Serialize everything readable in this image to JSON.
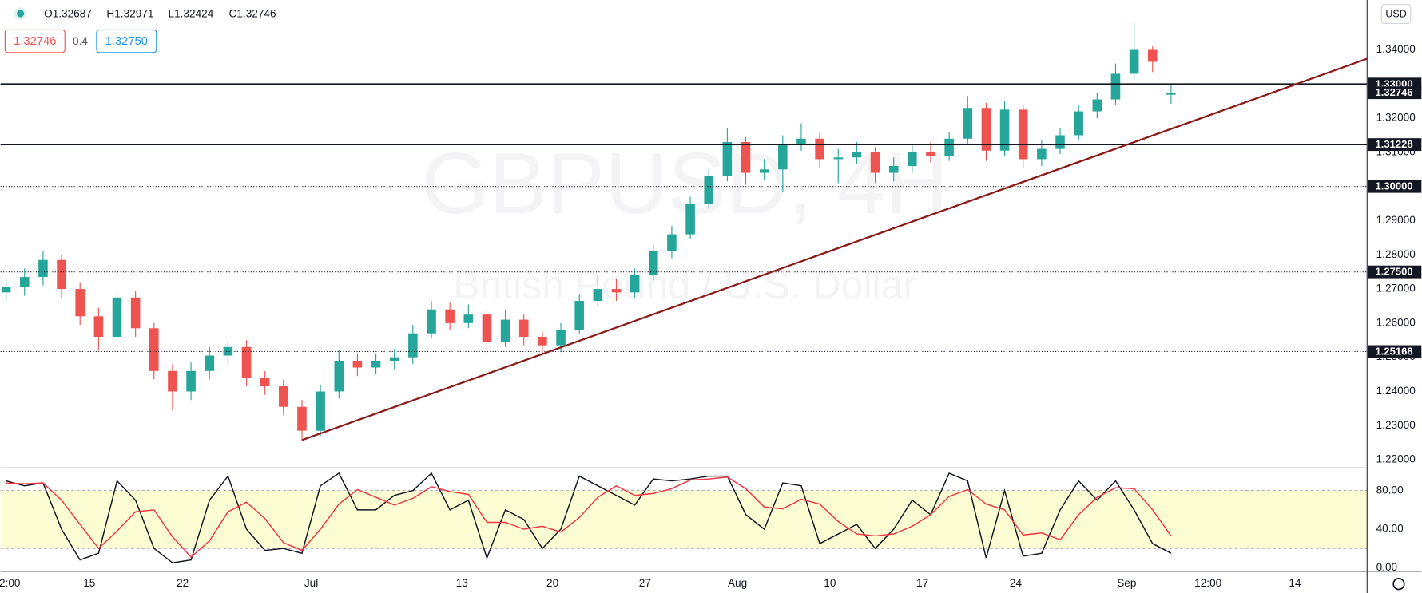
{
  "header": {
    "ohlc": [
      "O1.32687",
      "H1.32971",
      "L1.32424",
      "C1.32746"
    ],
    "bid": "1.32746",
    "spread": "0.4",
    "ask": "1.32750",
    "currency": "USD"
  },
  "chart_data": [
    {
      "type": "candlestick",
      "watermark": "GBPUSD, 4H",
      "watermark_subtitle": "British Pound / U.S. Dollar",
      "x": [
        0,
        1,
        2,
        3,
        4,
        5,
        6,
        7,
        8,
        9,
        10,
        11,
        12,
        13,
        14,
        15,
        16,
        17,
        18,
        19,
        20,
        21,
        22,
        23,
        24,
        25,
        26,
        27,
        28,
        29,
        30,
        31,
        32,
        33,
        34,
        35,
        36,
        37,
        38,
        39,
        40,
        41,
        42,
        43,
        44,
        45,
        46,
        47,
        48,
        49,
        50,
        51,
        52,
        53,
        54,
        55,
        56,
        57,
        58,
        59,
        60,
        61,
        62,
        63
      ],
      "open": [
        1.269,
        1.2705,
        1.2735,
        1.2785,
        1.27,
        1.262,
        1.256,
        1.2675,
        1.2585,
        1.246,
        1.24,
        1.246,
        1.2505,
        1.253,
        1.244,
        1.2415,
        1.2355,
        1.2285,
        1.24,
        1.249,
        1.247,
        1.249,
        1.25,
        1.257,
        1.264,
        1.26,
        1.2625,
        1.2545,
        1.261,
        1.256,
        1.2535,
        1.258,
        1.2665,
        1.27,
        1.269,
        1.274,
        1.281,
        1.286,
        1.295,
        1.303,
        1.313,
        1.304,
        1.305,
        1.3125,
        1.314,
        1.308,
        1.3085,
        1.31,
        1.304,
        1.306,
        1.31,
        1.309,
        1.314,
        1.323,
        1.3105,
        1.3225,
        1.308,
        1.311,
        1.315,
        1.322,
        1.3255,
        1.333,
        1.34,
        1.32687
      ],
      "high": [
        1.273,
        1.276,
        1.281,
        1.28,
        1.272,
        1.2645,
        1.269,
        1.2695,
        1.26,
        1.248,
        1.2485,
        1.253,
        1.2545,
        1.255,
        1.246,
        1.2435,
        1.2375,
        1.242,
        1.252,
        1.251,
        1.251,
        1.2525,
        1.2595,
        1.2665,
        1.266,
        1.2655,
        1.264,
        1.264,
        1.2625,
        1.2575,
        1.26,
        1.2685,
        1.274,
        1.273,
        1.276,
        1.283,
        1.2885,
        1.297,
        1.305,
        1.317,
        1.3145,
        1.308,
        1.315,
        1.3185,
        1.316,
        1.311,
        1.313,
        1.3115,
        1.3085,
        1.312,
        1.313,
        1.316,
        1.3265,
        1.3245,
        1.325,
        1.324,
        1.3135,
        1.317,
        1.324,
        1.3275,
        1.336,
        1.348,
        1.341,
        1.32971
      ],
      "low": [
        1.2665,
        1.268,
        1.271,
        1.2675,
        1.2595,
        1.252,
        1.2535,
        1.256,
        1.2435,
        1.2345,
        1.2375,
        1.2435,
        1.248,
        1.2415,
        1.239,
        1.233,
        1.2255,
        1.227,
        1.238,
        1.2445,
        1.245,
        1.2465,
        1.248,
        1.2555,
        1.258,
        1.2585,
        1.251,
        1.253,
        1.2535,
        1.251,
        1.2515,
        1.257,
        1.265,
        1.2665,
        1.2675,
        1.2725,
        1.279,
        1.2845,
        1.2935,
        1.3015,
        1.3005,
        1.302,
        1.2985,
        1.3105,
        1.3055,
        1.301,
        1.3065,
        1.301,
        1.3015,
        1.304,
        1.307,
        1.3075,
        1.3125,
        1.3075,
        1.309,
        1.3055,
        1.306,
        1.3095,
        1.3135,
        1.32,
        1.324,
        1.331,
        1.3335,
        1.32424
      ],
      "close": [
        1.2705,
        1.2735,
        1.2785,
        1.27,
        1.262,
        1.256,
        1.2675,
        1.2585,
        1.246,
        1.24,
        1.246,
        1.2505,
        1.253,
        1.244,
        1.2415,
        1.2355,
        1.2285,
        1.24,
        1.249,
        1.247,
        1.249,
        1.25,
        1.257,
        1.264,
        1.26,
        1.2625,
        1.2545,
        1.261,
        1.256,
        1.2535,
        1.258,
        1.2665,
        1.27,
        1.269,
        1.274,
        1.281,
        1.286,
        1.295,
        1.303,
        1.313,
        1.304,
        1.305,
        1.3125,
        1.314,
        1.308,
        1.3085,
        1.31,
        1.304,
        1.306,
        1.31,
        1.309,
        1.314,
        1.323,
        1.3105,
        1.3225,
        1.308,
        1.311,
        1.315,
        1.322,
        1.3255,
        1.333,
        1.34,
        1.3365,
        1.32746
      ],
      "up_color": "#26a69a",
      "down_color": "#ef5350",
      "xlim": [
        -0.3,
        73.6
      ],
      "ylim": [
        1.2181,
        1.3546
      ],
      "yticks": [
        {
          "value": 1.22,
          "label": "1.22000"
        },
        {
          "value": 1.23,
          "label": "1.23000"
        },
        {
          "value": 1.24,
          "label": "1.24000"
        },
        {
          "value": 1.25,
          "label": "1.25000"
        },
        {
          "value": 1.26,
          "label": "1.26000"
        },
        {
          "value": 1.27,
          "label": "1.27000"
        },
        {
          "value": 1.28,
          "label": "1.28000"
        },
        {
          "value": 1.29,
          "label": "1.29000"
        },
        {
          "value": 1.31,
          "label": "1.31000"
        },
        {
          "value": 1.32,
          "label": "1.32000"
        },
        {
          "value": 1.34,
          "label": "1.34000"
        }
      ],
      "xticks": [
        {
          "value": 0.2,
          "label": "2:00"
        },
        {
          "value": 4.5,
          "label": "15"
        },
        {
          "value": 9.55,
          "label": "22"
        },
        {
          "value": 16.5,
          "label": "Jul"
        },
        {
          "value": 24.65,
          "label": "13"
        },
        {
          "value": 29.55,
          "label": "20"
        },
        {
          "value": 34.55,
          "label": "27"
        },
        {
          "value": 39.55,
          "label": "Aug"
        },
        {
          "value": 44.55,
          "label": "10"
        },
        {
          "value": 49.55,
          "label": "17"
        },
        {
          "value": 54.6,
          "label": "24"
        },
        {
          "value": 60.6,
          "label": "Sep"
        },
        {
          "value": 65.0,
          "label": "12:00"
        },
        {
          "value": 69.7,
          "label": "14"
        }
      ],
      "levels": [
        {
          "value": 1.33,
          "label": "1.33000",
          "style": "solid"
        },
        {
          "value": 1.31228,
          "label": "1.31228",
          "style": "solid"
        },
        {
          "value": 1.3,
          "label": "1.30000",
          "style": "dotted"
        },
        {
          "value": 1.275,
          "label": "1.27500",
          "style": "dotted"
        },
        {
          "value": 1.25168,
          "label": "1.25168",
          "style": "dotted"
        }
      ],
      "last_price_label": "1.32746",
      "trendline": {
        "x": [
          16.02,
          73.6
        ],
        "y": [
          1.2258,
          1.3374
        ],
        "color": "#8b1a1a"
      }
    },
    {
      "type": "line",
      "x": [
        0,
        1,
        2,
        3,
        4,
        5,
        6,
        7,
        8,
        9,
        10,
        11,
        12,
        13,
        14,
        15,
        16,
        17,
        18,
        19,
        20,
        21,
        22,
        23,
        24,
        25,
        26,
        27,
        28,
        29,
        30,
        31,
        32,
        33,
        34,
        35,
        36,
        37,
        38,
        39,
        40,
        41,
        42,
        43,
        44,
        45,
        46,
        47,
        48,
        49,
        50,
        51,
        52,
        53,
        54,
        55,
        56,
        57,
        58,
        59,
        60,
        61,
        62,
        63
      ],
      "series": [
        {
          "color": "#131722",
          "values": [
            90,
            85,
            88,
            40,
            8,
            15,
            90,
            70,
            20,
            5,
            8,
            70,
            95,
            40,
            18,
            20,
            15,
            85,
            98,
            60,
            60,
            75,
            80,
            98,
            60,
            70,
            10,
            60,
            50,
            20,
            40,
            95,
            85,
            75,
            65,
            92,
            90,
            92,
            95,
            95,
            55,
            40,
            88,
            85,
            25,
            35,
            45,
            20,
            40,
            70,
            55,
            98,
            90,
            10,
            80,
            12,
            15,
            60,
            90,
            70,
            90,
            60,
            25,
            15
          ]
        },
        {
          "color": "#f23645",
          "values": [
            88,
            87,
            88,
            70,
            45,
            20,
            38,
            58,
            60,
            32,
            11,
            28,
            58,
            68,
            51,
            26,
            18,
            40,
            66,
            81,
            73,
            65,
            72,
            84,
            79,
            76,
            47,
            47,
            40,
            43,
            37,
            52,
            73,
            85,
            75,
            77,
            82,
            91,
            92,
            94,
            82,
            63,
            61,
            71,
            66,
            48,
            35,
            33,
            35,
            43,
            55,
            74,
            81,
            66,
            60,
            34,
            36,
            29,
            55,
            73,
            83,
            82,
            60,
            33
          ]
        }
      ],
      "xlim": [
        -0.3,
        73.6
      ],
      "ylim": [
        -3.7,
        101.5
      ],
      "yticks": [
        {
          "value": 0,
          "label": "0.00"
        },
        {
          "value": 40,
          "label": "40.00"
        },
        {
          "value": 80,
          "label": "80.00"
        }
      ],
      "band": [
        20,
        80
      ],
      "band_color": "#fdfdd3"
    }
  ]
}
